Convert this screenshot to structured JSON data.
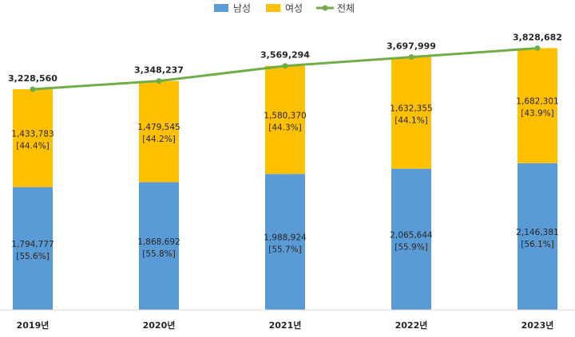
{
  "chart_data": {
    "type": "bar",
    "stacked": true,
    "categories": [
      "2019년",
      "2020년",
      "2021년",
      "2022년",
      "2023년"
    ],
    "series": [
      {
        "name": "남성",
        "type": "bar",
        "color": "#5b9bd5",
        "values": [
          1794777,
          1868692,
          1988924,
          2065644,
          2146381
        ],
        "value_labels": [
          "1,794,777",
          "1,868,692",
          "1,988,924",
          "2,065,644",
          "2,146,381"
        ],
        "share_labels": [
          "[55.6%]",
          "[55.8%]",
          "[55.7%]",
          "[55.9%]",
          "[56.1%]"
        ]
      },
      {
        "name": "여성",
        "type": "bar",
        "color": "#ffc000",
        "values": [
          1433783,
          1479545,
          1580370,
          1632355,
          1682301
        ],
        "value_labels": [
          "1,433,783",
          "1,479,545",
          "1,580,370",
          "1,632,355",
          "1,682,301"
        ],
        "share_labels": [
          "[44.4%]",
          "[44.2%]",
          "[44.3%]",
          "[44.1%]",
          "[43.9%]"
        ]
      },
      {
        "name": "전체",
        "type": "line",
        "color": "#70ad47",
        "values": [
          3228560,
          3348237,
          3569294,
          3697999,
          3828682
        ],
        "value_labels": [
          "3,228,560",
          "3,348,237",
          "3,569,294",
          "3,697,999",
          "3,828,682"
        ]
      }
    ],
    "ylim": [
      0,
      4300000
    ],
    "grid": false,
    "legend": "top-center"
  }
}
